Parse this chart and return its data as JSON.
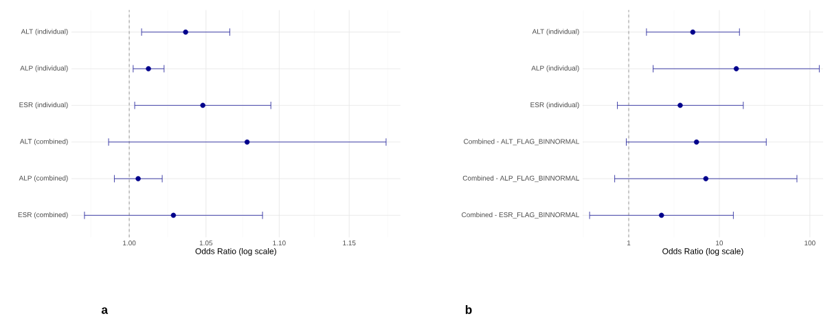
{
  "chart_data": [
    {
      "type": "scatter",
      "orientation": "horizontal",
      "log": "x",
      "grid": true,
      "marker": "circle",
      "color": "#00008b",
      "categories": [
        "ALT (individual)",
        "ALP (individual)",
        "ESR (individual)",
        "ALT (combined)",
        "ALP (combined)",
        "ESR (combined)"
      ],
      "values": [
        1.0365,
        1.0123,
        1.0479,
        1.0778,
        1.0057,
        1.0285
      ],
      "errors": [
        [
          1.0079,
          1.066
        ],
        [
          1.0025,
          1.0224
        ],
        [
          1.0035,
          1.0942
        ],
        [
          0.987,
          1.1773
        ],
        [
          0.9906,
          1.0212
        ],
        [
          0.972,
          1.0884
        ]
      ],
      "xlim": [
        0.964,
        1.188
      ],
      "xticks": [
        {
          "value": 1,
          "label": "1.00"
        },
        1.05,
        {
          "value": 1.1,
          "label": "1.10"
        },
        1.15
      ],
      "xlabel": "Odds Ratio (log scale)",
      "ref_lines": [
        {
          "axis": "x",
          "value": 1,
          "color": "#808080",
          "line_style": "dashed"
        }
      ],
      "annotations": [
        "a"
      ]
    },
    {
      "type": "scatter",
      "orientation": "horizontal",
      "log": "x",
      "grid": true,
      "marker": "circle",
      "color": "#00008b",
      "categories": [
        "ALT (individual)",
        "ALP (individual)",
        "ESR (individual)",
        "Combined - ALT_FLAG_BINNORMAL",
        "Combined - ALP_FLAG_BINNORMAL",
        "Combined - ESR_FLAG_BINNORMAL"
      ],
      "values": [
        5.1,
        15.4,
        3.7,
        5.6,
        7.1,
        2.3
      ],
      "errors": [
        [
          1.57,
          16.7
        ],
        [
          1.86,
          127
        ],
        [
          0.75,
          18.4
        ],
        [
          0.94,
          33
        ],
        [
          0.7,
          72
        ],
        [
          0.37,
          14.3
        ]
      ],
      "xlim": [
        0.31,
        140
      ],
      "xticks": [
        1,
        10,
        100
      ],
      "xlabel": "Odds Ratio (log scale)",
      "ref_lines": [
        {
          "axis": "x",
          "value": 1,
          "color": "#808080",
          "line_style": "dashed"
        }
      ],
      "annotations": [
        "b"
      ]
    }
  ]
}
